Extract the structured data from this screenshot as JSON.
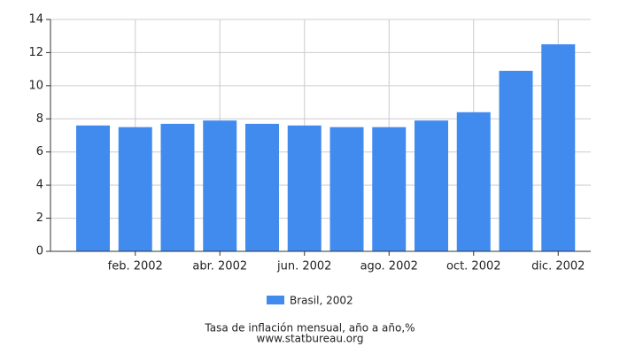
{
  "chart_data": {
    "type": "bar",
    "categories": [
      null,
      "feb. 2002",
      null,
      "abr. 2002",
      null,
      "jun. 2002",
      null,
      "ago. 2002",
      null,
      "oct. 2002",
      null,
      "dic. 2002"
    ],
    "series": [
      {
        "name": "Brasil, 2002",
        "color": "#418bef",
        "values": [
          7.6,
          7.5,
          7.7,
          7.9,
          7.7,
          7.6,
          7.5,
          7.5,
          7.9,
          8.4,
          10.9,
          12.5
        ]
      }
    ],
    "ylim": [
      0,
      14
    ],
    "yticks": [
      0,
      2,
      4,
      6,
      8,
      10,
      12,
      14
    ],
    "grid": true,
    "caption": "Tasa de inflación mensual, año a año,%",
    "source": "www.statbureau.org"
  }
}
